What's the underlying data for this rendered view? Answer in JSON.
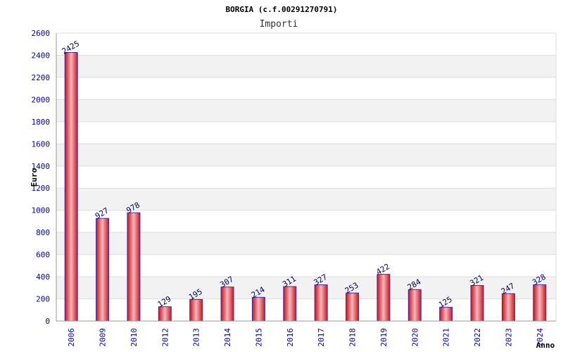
{
  "chart_data": {
    "type": "bar",
    "title": "BORGIA (c.f.00291270791)",
    "subtitle": "Importi",
    "xlabel": "Anno",
    "ylabel": "Euro",
    "categories": [
      "2006",
      "2009",
      "2010",
      "2012",
      "2013",
      "2014",
      "2015",
      "2016",
      "2017",
      "2018",
      "2019",
      "2020",
      "2021",
      "2022",
      "2023",
      "2024"
    ],
    "values": [
      2425,
      927,
      978,
      129,
      195,
      307,
      214,
      311,
      327,
      253,
      422,
      284,
      125,
      321,
      247,
      328
    ],
    "value_labels": [
      "2425",
      "927",
      "978",
      "129",
      "195",
      "307",
      "214",
      "311",
      "327",
      "253",
      "422",
      "284",
      "125",
      "321",
      "247",
      "328"
    ],
    "y_ticks": [
      0,
      200,
      400,
      600,
      800,
      1000,
      1200,
      1400,
      1600,
      1800,
      2000,
      2200,
      2400,
      2600
    ],
    "y_tick_labels": [
      "0",
      "200",
      "400",
      "600",
      "800",
      "1000",
      "1200",
      "1400",
      "1600",
      "1800",
      "2000",
      "2200",
      "2400",
      "2600"
    ],
    "ylim": [
      0,
      2600
    ],
    "grid": true,
    "bar_color": "#e8202a",
    "bar_edge_color": "#3333aa",
    "band_color": "#f2f2f2"
  }
}
